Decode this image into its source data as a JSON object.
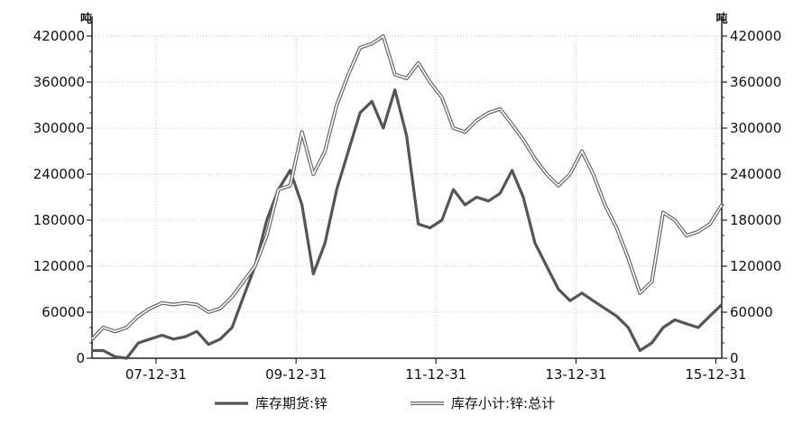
{
  "chart_data": {
    "type": "line",
    "y_unit_left": "吨",
    "y_unit_right": "吨",
    "ylim": [
      0,
      420000
    ],
    "yticks": [
      0,
      60000,
      120000,
      180000,
      240000,
      300000,
      360000,
      420000
    ],
    "ytick_labels": [
      "0",
      "60000",
      "120000",
      "180000",
      "240000",
      "300000",
      "360000",
      "420000"
    ],
    "xlim": [
      "2007-01-31",
      "2016-01-31"
    ],
    "xticks": [
      "2007-12-31",
      "2009-12-31",
      "2011-12-31",
      "2013-12-31",
      "2015-12-31"
    ],
    "xtick_labels": [
      "07-12-31",
      "09-12-31",
      "11-12-31",
      "13-12-31",
      "15-12-31"
    ],
    "grid": true,
    "legend_position": "bottom",
    "series": [
      {
        "name": "库存期货:锌",
        "color": "#555555",
        "style": "thick",
        "x": [
          "2007-01-31",
          "2007-03-31",
          "2007-05-31",
          "2007-07-31",
          "2007-09-30",
          "2007-11-30",
          "2008-01-31",
          "2008-03-31",
          "2008-05-31",
          "2008-07-31",
          "2008-09-30",
          "2008-11-30",
          "2009-01-31",
          "2009-03-31",
          "2009-05-31",
          "2009-07-31",
          "2009-09-30",
          "2009-11-30",
          "2010-01-31",
          "2010-03-31",
          "2010-05-31",
          "2010-07-31",
          "2010-09-30",
          "2010-11-30",
          "2011-01-31",
          "2011-03-31",
          "2011-05-31",
          "2011-07-31",
          "2011-09-30",
          "2011-11-30",
          "2012-01-31",
          "2012-03-31",
          "2012-05-31",
          "2012-07-31",
          "2012-09-30",
          "2012-11-30",
          "2013-01-31",
          "2013-03-31",
          "2013-05-31",
          "2013-07-31",
          "2013-09-30",
          "2013-11-30",
          "2014-01-31",
          "2014-03-31",
          "2014-05-31",
          "2014-07-31",
          "2014-09-30",
          "2014-11-30",
          "2015-01-31",
          "2015-03-31",
          "2015-05-31",
          "2015-07-31",
          "2015-09-30",
          "2015-11-30",
          "2016-01-31"
        ],
        "values": [
          10000,
          10000,
          2000,
          0,
          20000,
          25000,
          30000,
          25000,
          28000,
          35000,
          18000,
          25000,
          40000,
          80000,
          120000,
          180000,
          220000,
          245000,
          200000,
          110000,
          150000,
          220000,
          270000,
          320000,
          335000,
          300000,
          350000,
          290000,
          175000,
          170000,
          180000,
          220000,
          200000,
          210000,
          205000,
          215000,
          245000,
          210000,
          150000,
          120000,
          90000,
          75000,
          85000,
          75000,
          65000,
          55000,
          40000,
          10000,
          20000,
          40000,
          50000,
          45000,
          40000,
          55000,
          70000
        ]
      },
      {
        "name": "库存小计:锌:总计",
        "color": "#666666",
        "style": "double",
        "x": [
          "2007-01-31",
          "2007-03-31",
          "2007-05-31",
          "2007-07-31",
          "2007-09-30",
          "2007-11-30",
          "2008-01-31",
          "2008-03-31",
          "2008-05-31",
          "2008-07-31",
          "2008-09-30",
          "2008-11-30",
          "2009-01-31",
          "2009-03-31",
          "2009-05-31",
          "2009-07-31",
          "2009-09-30",
          "2009-11-30",
          "2010-01-31",
          "2010-03-31",
          "2010-05-31",
          "2010-07-31",
          "2010-09-30",
          "2010-11-30",
          "2011-01-31",
          "2011-03-31",
          "2011-05-31",
          "2011-07-31",
          "2011-09-30",
          "2011-11-30",
          "2012-01-31",
          "2012-03-31",
          "2012-05-31",
          "2012-07-31",
          "2012-09-30",
          "2012-11-30",
          "2013-01-31",
          "2013-03-31",
          "2013-05-31",
          "2013-07-31",
          "2013-09-30",
          "2013-11-30",
          "2014-01-31",
          "2014-03-31",
          "2014-05-31",
          "2014-07-31",
          "2014-09-30",
          "2014-11-30",
          "2015-01-31",
          "2015-03-31",
          "2015-05-31",
          "2015-07-31",
          "2015-09-30",
          "2015-11-30",
          "2016-01-31"
        ],
        "values": [
          25000,
          40000,
          35000,
          40000,
          55000,
          65000,
          72000,
          70000,
          72000,
          70000,
          60000,
          65000,
          80000,
          100000,
          120000,
          160000,
          220000,
          225000,
          295000,
          240000,
          270000,
          330000,
          370000,
          405000,
          410000,
          420000,
          370000,
          365000,
          385000,
          360000,
          340000,
          300000,
          295000,
          310000,
          320000,
          325000,
          305000,
          285000,
          260000,
          240000,
          225000,
          240000,
          270000,
          240000,
          200000,
          170000,
          130000,
          85000,
          100000,
          190000,
          180000,
          160000,
          165000,
          175000,
          200000
        ]
      }
    ]
  }
}
